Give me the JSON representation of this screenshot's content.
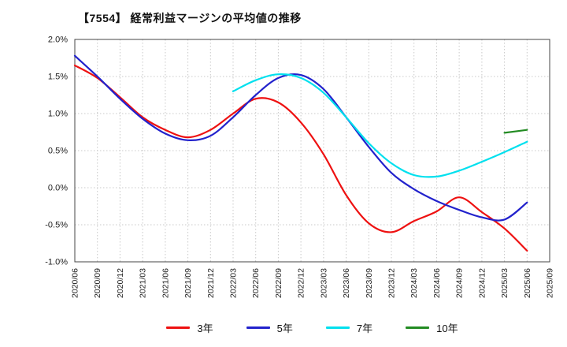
{
  "title": "【7554】 経常利益マージンの平均値の推移",
  "chart_data": {
    "type": "line",
    "title": "【7554】 経常利益マージンの平均値の推移",
    "xlabel": "",
    "ylabel": "",
    "ylim": [
      -1.0,
      2.0
    ],
    "ytick_step": 0.5,
    "ytick_format": "percent",
    "grid": true,
    "legend_position": "bottom",
    "categories": [
      "2020/06",
      "2020/09",
      "2020/12",
      "2021/03",
      "2021/06",
      "2021/09",
      "2021/12",
      "2022/03",
      "2022/06",
      "2022/09",
      "2022/12",
      "2023/03",
      "2023/06",
      "2023/09",
      "2023/12",
      "2024/03",
      "2024/06",
      "2024/09",
      "2024/12",
      "2025/03",
      "2025/06",
      "2025/09"
    ],
    "series": [
      {
        "name": "3年",
        "color": "#ee1111",
        "values": [
          1.65,
          1.48,
          1.22,
          0.95,
          0.78,
          0.68,
          0.78,
          1.0,
          1.2,
          1.15,
          0.88,
          0.45,
          -0.1,
          -0.48,
          -0.6,
          -0.45,
          -0.32,
          -0.13,
          -0.33,
          -0.55,
          -0.85,
          null
        ]
      },
      {
        "name": "5年",
        "color": "#2222cc",
        "values": [
          1.78,
          1.5,
          1.2,
          0.93,
          0.73,
          0.64,
          0.7,
          0.95,
          1.25,
          1.48,
          1.52,
          1.33,
          0.95,
          0.55,
          0.2,
          -0.02,
          -0.18,
          -0.3,
          -0.4,
          -0.43,
          -0.2,
          null
        ]
      },
      {
        "name": "7年",
        "color": "#00e0ee",
        "values": [
          null,
          null,
          null,
          null,
          null,
          null,
          null,
          1.3,
          1.45,
          1.53,
          1.48,
          1.28,
          0.95,
          0.6,
          0.33,
          0.17,
          0.15,
          0.23,
          0.35,
          0.48,
          0.62,
          null
        ]
      },
      {
        "name": "10年",
        "color": "#228b22",
        "values": [
          null,
          null,
          null,
          null,
          null,
          null,
          null,
          null,
          null,
          null,
          null,
          null,
          null,
          null,
          null,
          null,
          null,
          null,
          null,
          0.74,
          0.78,
          null
        ]
      }
    ]
  }
}
